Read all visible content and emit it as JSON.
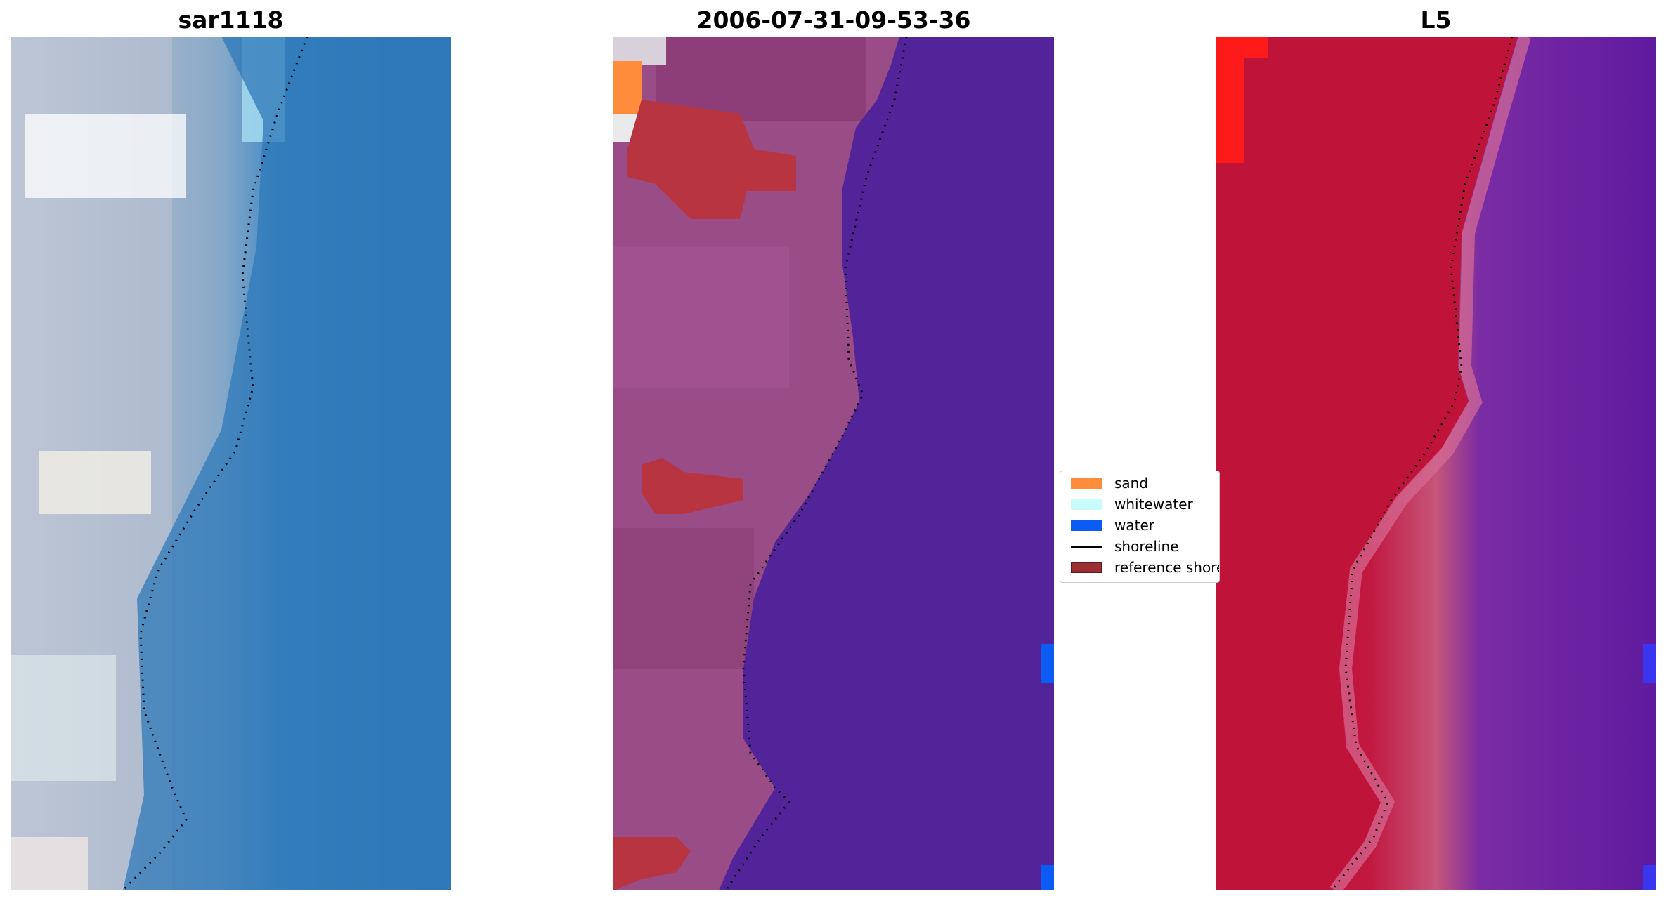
{
  "panels": [
    {
      "title": "sar1118"
    },
    {
      "title": "2006-07-31-09-53-36"
    },
    {
      "title": "L5"
    }
  ],
  "legend": {
    "items": [
      {
        "label": "sand",
        "color": "#ff8c3a"
      },
      {
        "label": "whitewater",
        "color": "#c8fcfa"
      },
      {
        "label": "water",
        "color": "#0a5cf5"
      },
      {
        "label": "shoreline",
        "color": "#000000"
      },
      {
        "label": "reference shoreline",
        "color": "#9c2f33"
      }
    ]
  },
  "colors": {
    "sar_land": "#aebbd0",
    "sar_water": "#2f7ab9",
    "class_land": "#9a4c86",
    "class_water": "#53239a",
    "class_reference": "#b83441",
    "l5_land": "#bf1339",
    "l5_water": "#6b22a3"
  }
}
